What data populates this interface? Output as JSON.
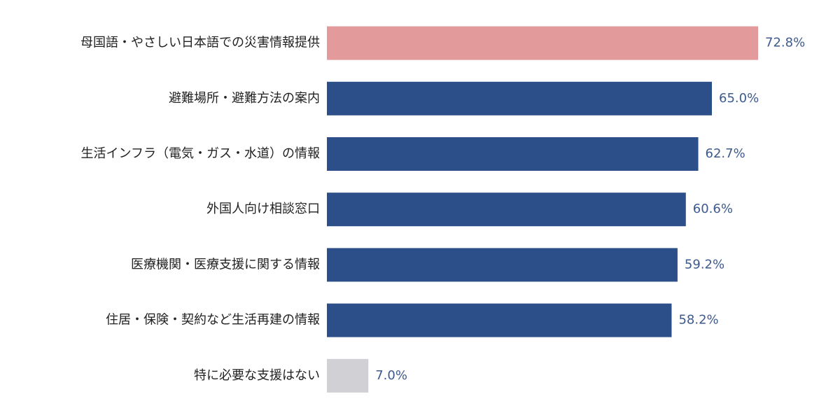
{
  "chart_data": {
    "type": "barh",
    "categories": [
      "母国語・やさしい日本語での災害情報提供",
      "避難場所・避難方法の案内",
      "生活インフラ（電気・ガス・水道）の情報",
      "外国人向け相談窓口",
      "医療機関・医療支援に関する情報",
      "住居・保険・契約など生活再建の情報",
      "特に必要な支援はない"
    ],
    "values": [
      72.8,
      65.0,
      62.7,
      60.6,
      59.2,
      58.2,
      7.0
    ],
    "value_labels": [
      "72.8%",
      "65.0%",
      "62.7%",
      "60.6%",
      "59.2%",
      "58.2%",
      "7.0%"
    ],
    "colors": [
      "#e39a9a",
      "#2c4f8a",
      "#2c4f8a",
      "#2c4f8a",
      "#2c4f8a",
      "#2c4f8a",
      "#d1d0d5"
    ]
  }
}
